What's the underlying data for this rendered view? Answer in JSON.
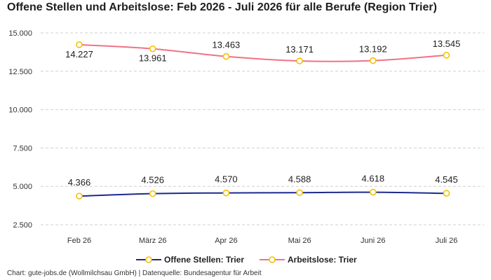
{
  "title": "Offene Stellen und Arbeitslose: Feb 2026 - Juli 2026 für alle Berufe (Region Trier)",
  "footer": "Chart: gute-jobs.de (Wollmilchsau GmbH) | Datenquelle: Bundesagentur für Arbeit",
  "colors": {
    "offene_stellen": "#1b2a8c",
    "arbeitslose": "#f07285",
    "marker_fill": "#ffffff",
    "marker_stroke": "#f5c000",
    "grid": "#cfcfcf"
  },
  "chart_data": {
    "type": "line",
    "categories": [
      "Feb 26",
      "März 26",
      "Apr 26",
      "Mai 26",
      "Juni 26",
      "Juli 26"
    ],
    "series": [
      {
        "name": "Offene Stellen: Trier",
        "values": [
          4366,
          4526,
          4570,
          4588,
          4618,
          4545
        ],
        "labels": [
          "4.366",
          "4.526",
          "4.570",
          "4.588",
          "4.618",
          "4.545"
        ]
      },
      {
        "name": "Arbeitslose: Trier",
        "values": [
          14227,
          13961,
          13463,
          13171,
          13192,
          13545
        ],
        "labels": [
          "14.227",
          "13.961",
          "13.463",
          "13.171",
          "13.192",
          "13.545"
        ]
      }
    ],
    "yticks": [
      2500,
      5000,
      7500,
      10000,
      12500,
      15000
    ],
    "ytick_labels": [
      "2.500",
      "5.000",
      "7.500",
      "10.000",
      "12.500",
      "15.000"
    ],
    "ylim": [
      2000,
      15500
    ],
    "grid": true,
    "legend_position": "bottom"
  }
}
